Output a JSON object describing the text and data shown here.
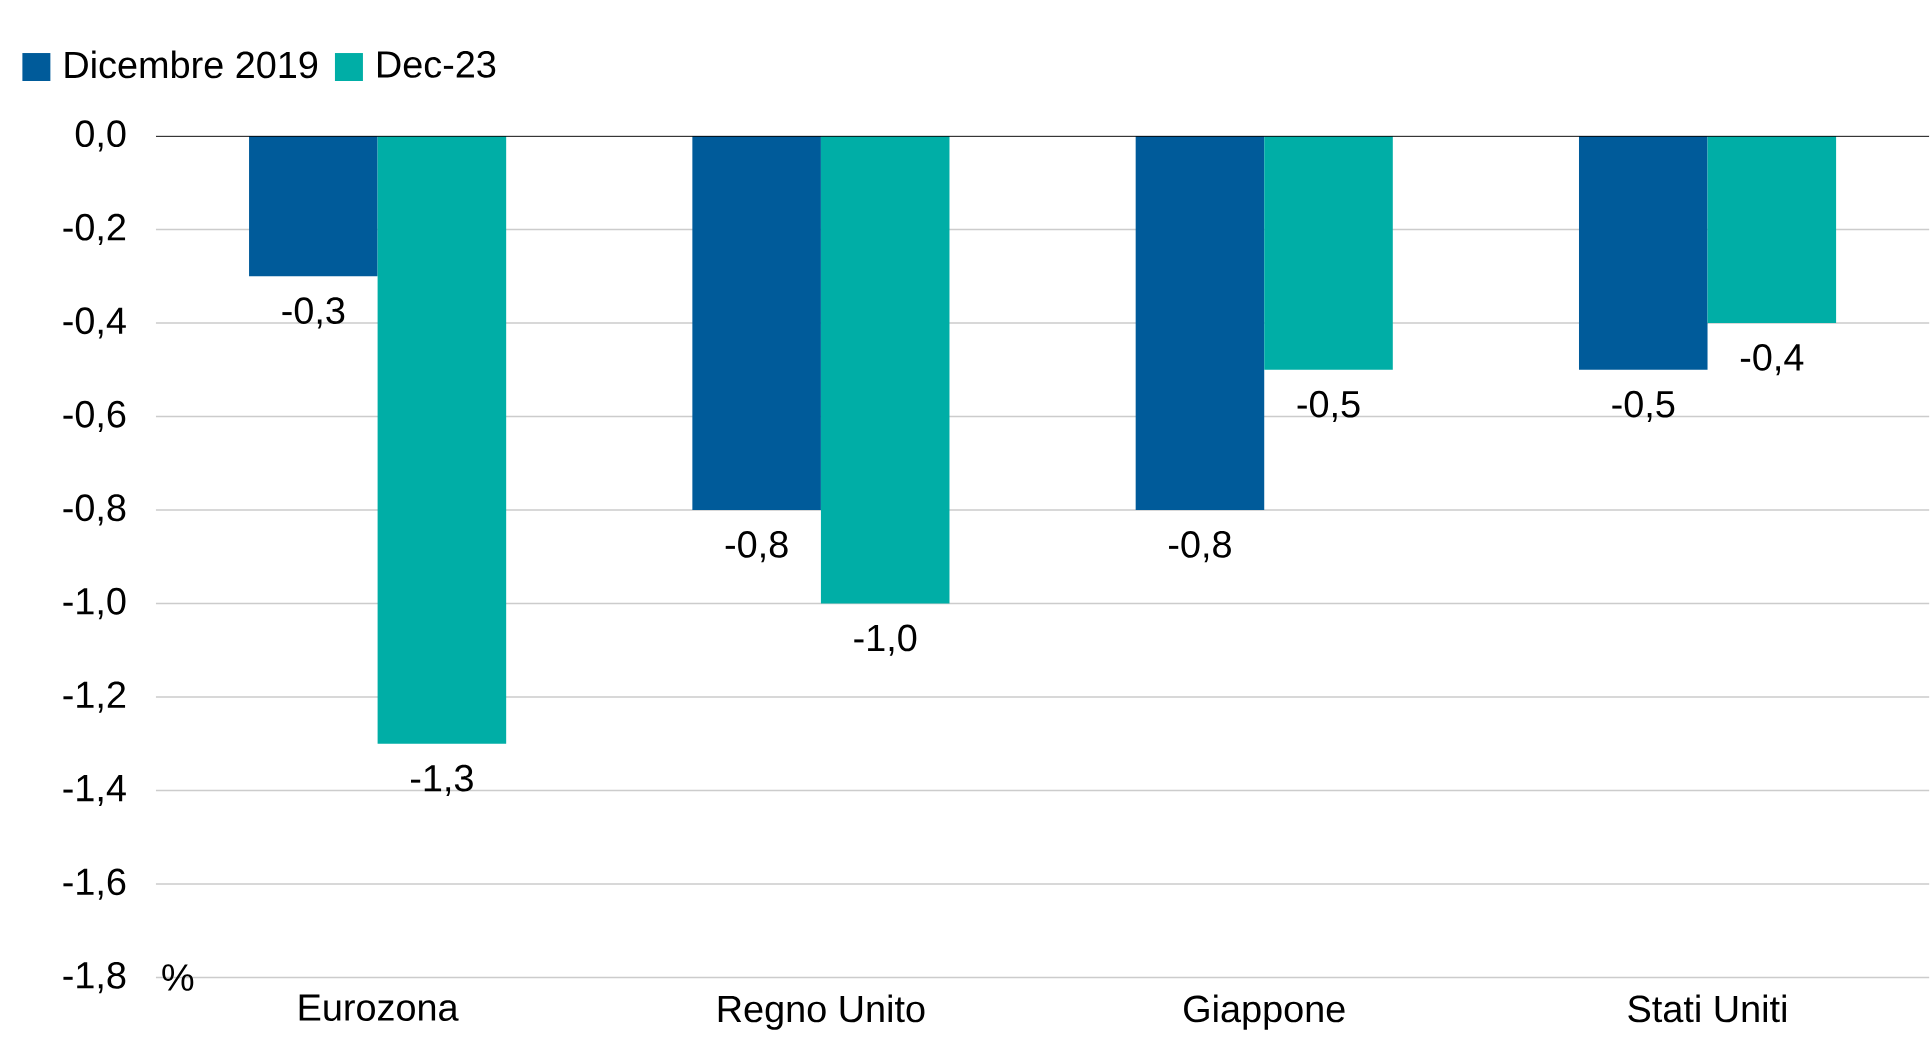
{
  "chart_data": {
    "type": "bar",
    "annotations": [
      "%"
    ],
    "categories": [
      "Eurozona",
      "Regno Unito",
      "Giappone",
      "Stati Uniti"
    ],
    "series": [
      {
        "name": "Dicembre 2019",
        "color": "#005b9a",
        "values": [
          -0.3,
          -0.8,
          -0.8,
          -0.5
        ],
        "value_labels": [
          "-0,3",
          "-0,8",
          "-0,8",
          "-0,5"
        ]
      },
      {
        "name": "Dec-23",
        "color": "#00aea6",
        "values": [
          -1.3,
          -1.0,
          -0.5,
          -0.4
        ],
        "value_labels": [
          "-1,3",
          "-1,0",
          "-0,5",
          "-0,4"
        ]
      }
    ],
    "ylim": [
      -1.8,
      0
    ],
    "yticks": [
      {
        "value": 0,
        "label": "0,0"
      },
      {
        "value": -0.2,
        "label": "-0,2"
      },
      {
        "value": -0.4,
        "label": "-0,4"
      },
      {
        "value": -0.6,
        "label": "-0,6"
      },
      {
        "value": -0.8,
        "label": "-0,8"
      },
      {
        "value": -1.0,
        "label": "-1,0"
      },
      {
        "value": -1.2,
        "label": "-1,2"
      },
      {
        "value": -1.4,
        "label": "-1,4"
      },
      {
        "value": -1.6,
        "label": "-1,6"
      },
      {
        "value": -1.8,
        "label": "-1,8"
      }
    ],
    "grid": "y",
    "legend": "top left"
  }
}
